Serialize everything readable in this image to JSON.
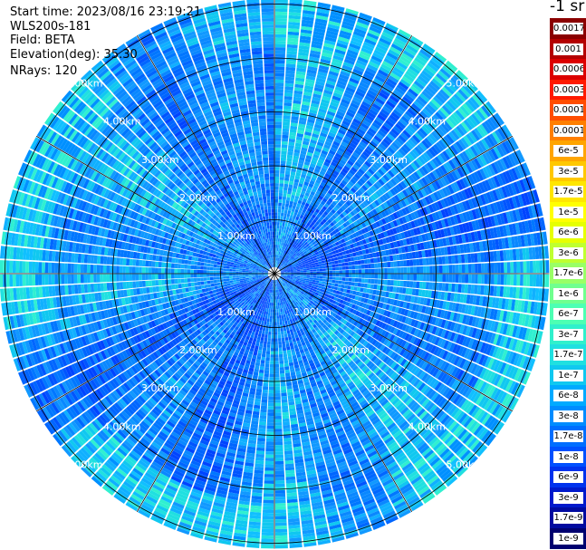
{
  "info": {
    "start_time": "Start time: 2023/08/16 23:19:21",
    "instrument": "WLS200s-181",
    "field": "Field: BETA",
    "elevation": "Elevation(deg): 35.30",
    "nrays": "NRays: 120"
  },
  "legend": {
    "title": "-1 sr",
    "labels": [
      "0.0017",
      "0.001",
      "0.0006",
      "0.0003",
      "0.00017",
      "0.0001",
      "6e-5",
      "3e-5",
      "1.7e-5",
      "1e-5",
      "6e-6",
      "3e-6",
      "1.7e-6",
      "1e-6",
      "6e-7",
      "3e-7",
      "1.7e-7",
      "1e-7",
      "6e-8",
      "3e-8",
      "1.7e-8",
      "1e-8",
      "6e-9",
      "3e-9",
      "1.7e-9",
      "1e-9"
    ],
    "colors": [
      "#8b0000",
      "#b40000",
      "#dc0000",
      "#ff1a00",
      "#ff4d00",
      "#ff7f00",
      "#ffa500",
      "#ffc800",
      "#ffe600",
      "#ffff00",
      "#e6ff00",
      "#bfff30",
      "#99ff66",
      "#70ff8f",
      "#4dffb3",
      "#30f0cc",
      "#20e0e0",
      "#10c8f0",
      "#00aaff",
      "#008cff",
      "#006eff",
      "#0050ff",
      "#0032ee",
      "#0019cc",
      "#000aa0",
      "#000070"
    ]
  },
  "chart_data": {
    "type": "heatmap",
    "projection": "polar-ppi",
    "field": "BETA",
    "units": "sr-1",
    "n_rays": 120,
    "range_rings_km": [
      1,
      2,
      3,
      4,
      5
    ],
    "range_ring_labels": [
      "1.00km",
      "2.00km",
      "3.00km",
      "4.00km",
      "5.00km"
    ],
    "max_range_km": 5.1,
    "color_scale": "log",
    "vmin": 1e-09,
    "vmax": 0.0017,
    "dominant_values": [
      1e-08,
      1.7e-08,
      3e-08,
      6e-08,
      1e-07
    ],
    "grid": true
  }
}
